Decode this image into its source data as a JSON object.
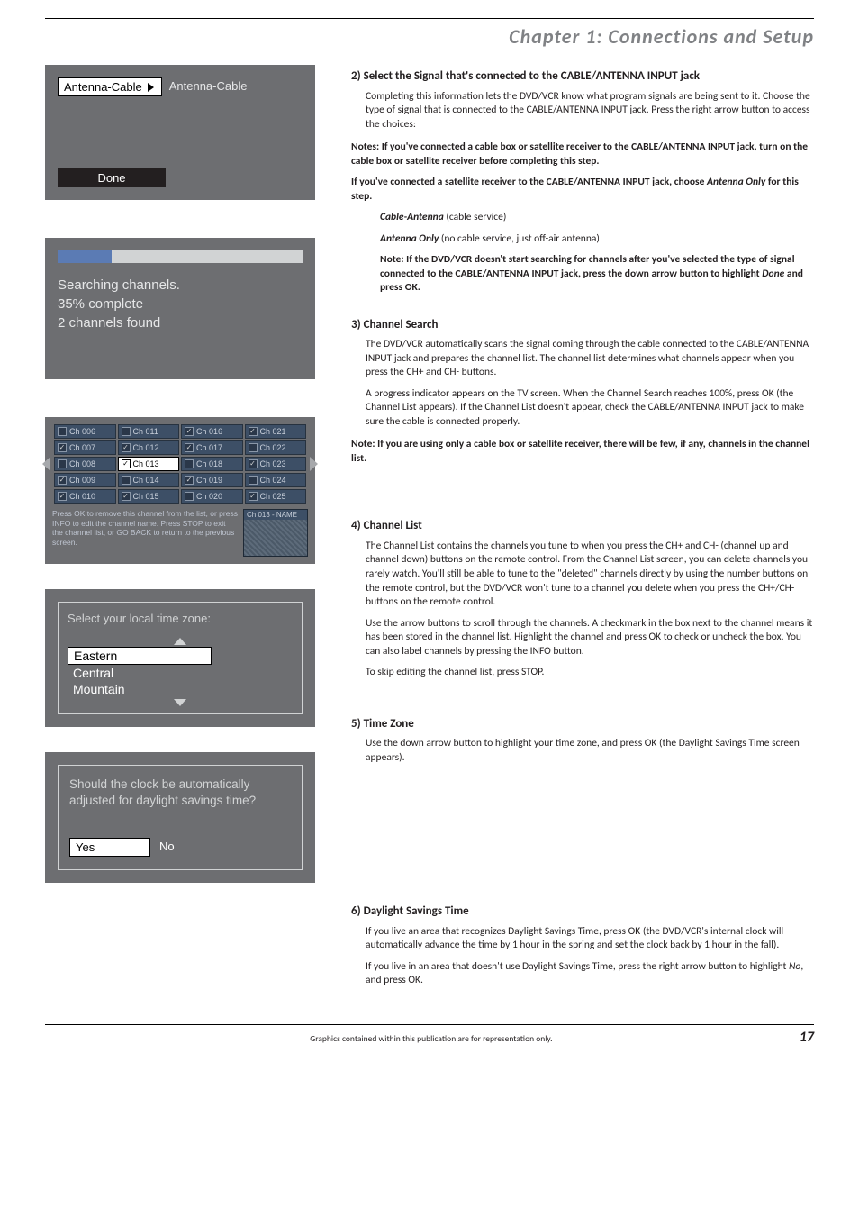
{
  "chapter_title": "Chapter 1: Connections and Setup",
  "footer": {
    "text": "Graphics contained within this publication are for representation only.",
    "page": "17"
  },
  "screens": {
    "antenna": {
      "selected": "Antenna-Cable",
      "option": "Antenna-Cable",
      "done": "Done"
    },
    "search": {
      "l1": "Searching channels.",
      "l2": "35% complete",
      "l3": "2 channels found"
    },
    "chlist": {
      "grid": [
        [
          {
            "n": "Ch 006",
            "c": 0
          },
          {
            "n": "Ch 011",
            "c": 0
          },
          {
            "n": "Ch 016",
            "c": 1
          },
          {
            "n": "Ch 021",
            "c": 1
          }
        ],
        [
          {
            "n": "Ch 007",
            "c": 1
          },
          {
            "n": "Ch 012",
            "c": 1
          },
          {
            "n": "Ch 017",
            "c": 1
          },
          {
            "n": "Ch 022",
            "c": 0
          }
        ],
        [
          {
            "n": "Ch 008",
            "c": 0
          },
          {
            "n": "Ch 013",
            "c": 1,
            "sel": 1
          },
          {
            "n": "Ch 018",
            "c": 0
          },
          {
            "n": "Ch 023",
            "c": 1
          }
        ],
        [
          {
            "n": "Ch 009",
            "c": 1
          },
          {
            "n": "Ch 014",
            "c": 0
          },
          {
            "n": "Ch 019",
            "c": 1
          },
          {
            "n": "Ch 024",
            "c": 0
          }
        ],
        [
          {
            "n": "Ch 010",
            "c": 1
          },
          {
            "n": "Ch 015",
            "c": 1
          },
          {
            "n": "Ch 020",
            "c": 0
          },
          {
            "n": "Ch 025",
            "c": 1
          }
        ]
      ],
      "help": "Press OK to remove this channel from the list, or press INFO to edit the channel name. Press STOP to exit the channel list, or GO BACK to return to the previous screen.",
      "preview_label": "Ch 013 - NAME"
    },
    "tz": {
      "title": "Select your local time zone:",
      "items": [
        "Eastern",
        "Central",
        "Mountain"
      ]
    },
    "dst": {
      "q": "Should the clock be automatically adjusted for daylight savings time?",
      "yes": "Yes",
      "no": "No"
    }
  },
  "right": {
    "s2": {
      "h": "2) Select the Signal that's connected to the CABLE/ANTENNA INPUT jack",
      "p1": "Completing this information lets the DVD/VCR know what program signals are being sent to it. Choose the type of signal that is connected to the CABLE/ANTENNA INPUT jack. Press the right arrow button to access the choices:",
      "n1": "Notes: If you've connected a cable box or satellite receiver to the CABLE/ANTENNA INPUT jack, turn on the cable box or satellite receiver before completing this step.",
      "n2a": "If you've connected a satellite receiver to the CABLE/ANTENNA INPUT jack, choose ",
      "n2b": "Antenna Only",
      "n2c": " for this step.",
      "opt1a": "Cable-Antenna",
      "opt1b": " (cable service)",
      "opt2a": "Antenna Only",
      "opt2b": " (no cable service, just off-air antenna)",
      "n3a": "Note: If the DVD/VCR doesn't start searching for channels after you've selected the type of signal connected to the CABLE/ANTENNA INPUT jack, press the down arrow button to highlight ",
      "n3b": "Done",
      "n3c": " and press OK."
    },
    "s3": {
      "h": "3) Channel Search",
      "p1": "The DVD/VCR automatically scans the signal coming through the cable connected to the CABLE/ANTENNA INPUT jack and prepares the channel list. The channel list determines what channels appear when you press the CH+ and CH- buttons.",
      "p2": "A progress indicator appears on the TV screen. When the Channel Search reaches 100%, press OK (the Channel List appears). If the Channel List doesn't appear, check the CABLE/ANTENNA INPUT jack to make sure the cable is connected properly.",
      "n1": "Note: If you are using only a cable box or satellite receiver, there will be few, if any, channels in the channel list."
    },
    "s4": {
      "h": "4) Channel List",
      "p1": "The Channel List contains the channels you tune to when you press the CH+ and CH- (channel up and channel down) buttons on the remote control. From the Channel List screen, you can delete channels you rarely watch. You'll still be able to tune to the \"deleted\" channels directly by using the number buttons on the remote control, but the DVD/VCR won't tune to a channel you delete when you press the CH+/CH- buttons on the remote control.",
      "p2": "Use the  arrow buttons to scroll through the channels. A checkmark in the box next to the channel means it has been stored in the channel list. Highlight the channel and press OK to check or uncheck the box. You can also label channels by pressing the INFO button.",
      "p3": "To skip editing the channel list, press STOP."
    },
    "s5": {
      "h": "5) Time Zone",
      "p1": "Use the down arrow button to highlight your time zone, and press OK (the Daylight Savings Time screen appears)."
    },
    "s6": {
      "h": "6) Daylight Savings Time",
      "p1": "If you live an area that recognizes Daylight Savings Time, press OK (the DVD/VCR's internal clock will automatically advance the time by 1 hour in the spring and set the clock back by 1 hour in the fall).",
      "p2a": "If you live in an area that doesn't use Daylight Savings Time, press the right arrow button to highlight ",
      "p2b": "No",
      "p2c": ", and press OK."
    }
  }
}
